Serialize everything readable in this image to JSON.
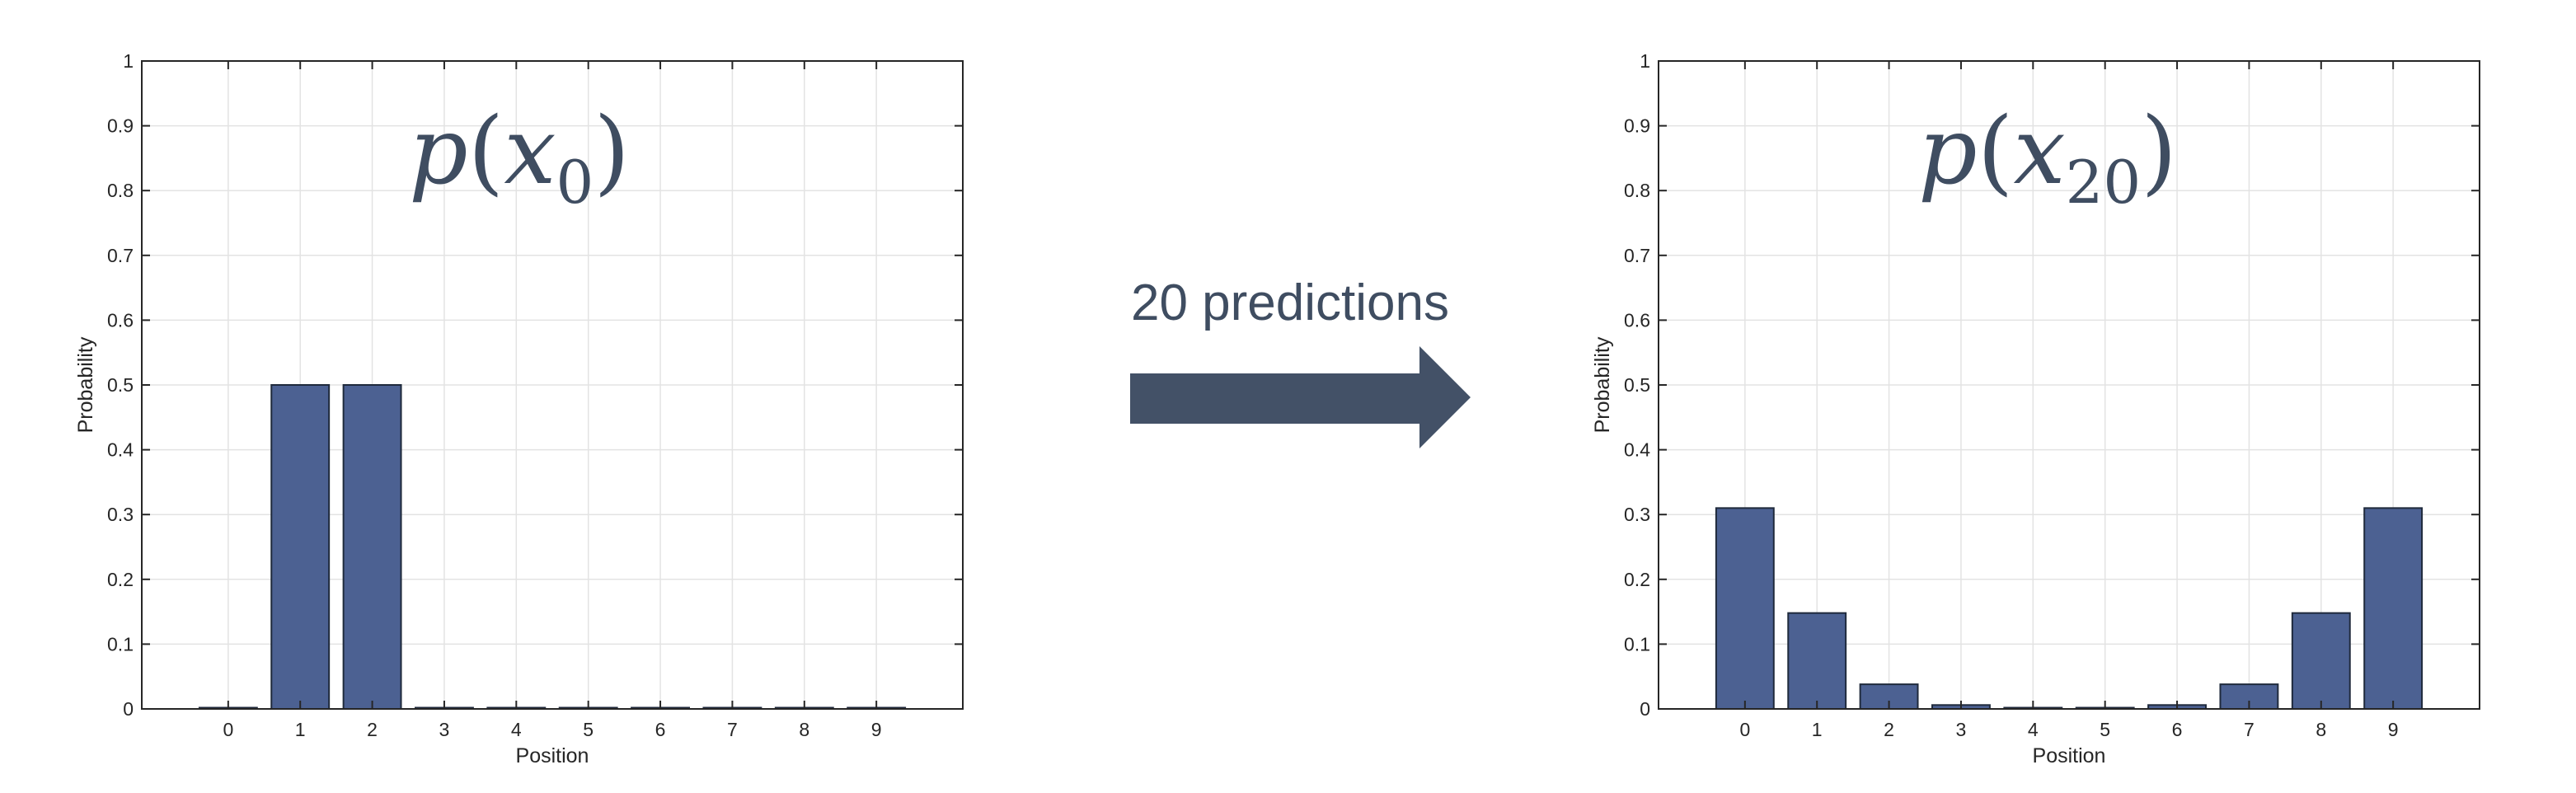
{
  "colors": {
    "bar_fill": "#4c6192",
    "bar_edge": "#1f2a3c",
    "grid": "#e3e3e3",
    "axis": "#262626",
    "arrow": "#435167",
    "math_text": "#3f4d61"
  },
  "arrow": {
    "label": "20 predictions",
    "icon": "right-arrow-icon"
  },
  "chart_data": [
    {
      "type": "bar",
      "title": "p(x₀)",
      "title_parts": {
        "func": "p",
        "open": "(",
        "var": "x",
        "sub": "0",
        "close": ")"
      },
      "xlabel": "Position",
      "ylabel": "Probability",
      "categories": [
        "0",
        "1",
        "2",
        "3",
        "4",
        "5",
        "6",
        "7",
        "8",
        "9"
      ],
      "values": [
        0,
        0.5,
        0.5,
        0,
        0,
        0,
        0,
        0,
        0,
        0
      ],
      "xlim": [
        -1.2,
        10.2
      ],
      "ylim": [
        0,
        1
      ],
      "yticks": [
        "0",
        "0.1",
        "0.2",
        "0.3",
        "0.4",
        "0.5",
        "0.6",
        "0.7",
        "0.8",
        "0.9",
        "1"
      ],
      "grid": true
    },
    {
      "type": "bar",
      "title": "p(x₂₀)",
      "title_parts": {
        "func": "p",
        "open": "(",
        "var": "x",
        "sub": "20",
        "close": ")"
      },
      "xlabel": "Position",
      "ylabel": "Probability",
      "categories": [
        "0",
        "1",
        "2",
        "3",
        "4",
        "5",
        "6",
        "7",
        "8",
        "9"
      ],
      "values": [
        0.31,
        0.148,
        0.038,
        0.006,
        0.001,
        0.001,
        0.006,
        0.038,
        0.148,
        0.31
      ],
      "xlim": [
        -1.2,
        10.2
      ],
      "ylim": [
        0,
        1
      ],
      "yticks": [
        "0",
        "0.1",
        "0.2",
        "0.3",
        "0.4",
        "0.5",
        "0.6",
        "0.7",
        "0.8",
        "0.9",
        "1"
      ],
      "grid": true
    }
  ]
}
